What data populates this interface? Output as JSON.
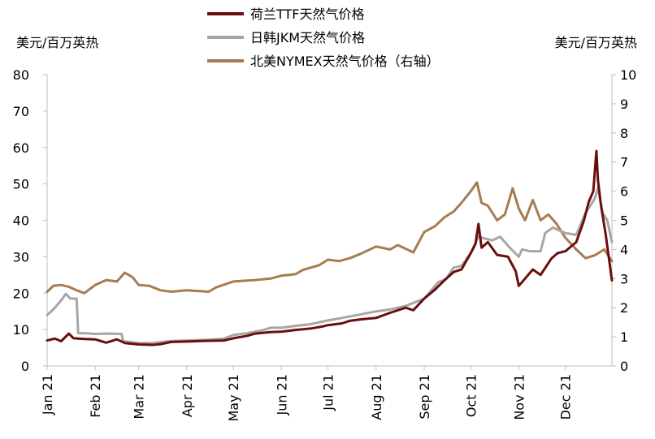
{
  "chart_data": {
    "type": "line",
    "left_unit": "美元/百万英热",
    "right_unit": "美元/百万英热",
    "ylim_left": [
      0,
      80
    ],
    "ylim_right": [
      0,
      10
    ],
    "yticks_left": [
      "0",
      "10",
      "20",
      "30",
      "40",
      "50",
      "60",
      "70",
      "80"
    ],
    "yticks_right": [
      "0",
      "1",
      "2",
      "3",
      "4",
      "5",
      "6",
      "7",
      "8",
      "9",
      "10"
    ],
    "x_start": "2021-01-01",
    "x_end": "2021-12-31",
    "x_ticks": [
      {
        "label": "Jan 21",
        "date": "2021-01-01"
      },
      {
        "label": "Feb 21",
        "date": "2021-02-01"
      },
      {
        "label": "Mar 21",
        "date": "2021-03-01"
      },
      {
        "label": "Apr 21",
        "date": "2021-04-01"
      },
      {
        "label": "May 21",
        "date": "2021-05-01"
      },
      {
        "label": "Jun 21",
        "date": "2021-06-01"
      },
      {
        "label": "Jul 21",
        "date": "2021-07-01"
      },
      {
        "label": "Aug 21",
        "date": "2021-08-01"
      },
      {
        "label": "Sep 21",
        "date": "2021-09-01"
      },
      {
        "label": "Oct 21",
        "date": "2021-10-01"
      },
      {
        "label": "Nov 21",
        "date": "2021-11-01"
      },
      {
        "label": "Dec 21",
        "date": "2021-12-01"
      }
    ],
    "grid": false,
    "legend_position": "top-center",
    "series": [
      {
        "name": "荷兰TTF天然气价格",
        "axis": "left",
        "color": "#6b0d0d",
        "points": [
          [
            "2021-01-01",
            7.0
          ],
          [
            "2021-01-06",
            7.5
          ],
          [
            "2021-01-10",
            6.8
          ],
          [
            "2021-01-15",
            8.9
          ],
          [
            "2021-01-18",
            7.6
          ],
          [
            "2021-01-25",
            7.4
          ],
          [
            "2021-02-01",
            7.3
          ],
          [
            "2021-02-08",
            6.4
          ],
          [
            "2021-02-15",
            7.3
          ],
          [
            "2021-02-20",
            6.3
          ],
          [
            "2021-03-01",
            5.9
          ],
          [
            "2021-03-10",
            5.8
          ],
          [
            "2021-03-15",
            6.0
          ],
          [
            "2021-03-22",
            6.6
          ],
          [
            "2021-04-01",
            6.7
          ],
          [
            "2021-04-15",
            6.9
          ],
          [
            "2021-04-25",
            7.0
          ],
          [
            "2021-05-01",
            7.6
          ],
          [
            "2021-05-10",
            8.3
          ],
          [
            "2021-05-15",
            8.9
          ],
          [
            "2021-05-25",
            9.3
          ],
          [
            "2021-06-01",
            9.4
          ],
          [
            "2021-06-10",
            9.9
          ],
          [
            "2021-06-20",
            10.3
          ],
          [
            "2021-06-28",
            10.9
          ],
          [
            "2021-07-01",
            11.2
          ],
          [
            "2021-07-10",
            11.7
          ],
          [
            "2021-07-15",
            12.4
          ],
          [
            "2021-07-22",
            12.8
          ],
          [
            "2021-08-01",
            13.2
          ],
          [
            "2021-08-10",
            14.6
          ],
          [
            "2021-08-20",
            16.0
          ],
          [
            "2021-08-25",
            15.3
          ],
          [
            "2021-09-01",
            18.5
          ],
          [
            "2021-09-08",
            21.0
          ],
          [
            "2021-09-14",
            23.5
          ],
          [
            "2021-09-20",
            25.8
          ],
          [
            "2021-09-25",
            26.5
          ],
          [
            "2021-10-01",
            31.0
          ],
          [
            "2021-10-04",
            33.5
          ],
          [
            "2021-10-06",
            39.0
          ],
          [
            "2021-10-08",
            32.5
          ],
          [
            "2021-10-12",
            34.0
          ],
          [
            "2021-10-18",
            30.5
          ],
          [
            "2021-10-25",
            30.0
          ],
          [
            "2021-10-30",
            26.0
          ],
          [
            "2021-11-01",
            22.0
          ],
          [
            "2021-11-05",
            24.0
          ],
          [
            "2021-11-10",
            26.5
          ],
          [
            "2021-11-15",
            25.0
          ],
          [
            "2021-11-22",
            29.5
          ],
          [
            "2021-11-26",
            31.0
          ],
          [
            "2021-12-01",
            31.5
          ],
          [
            "2021-12-08",
            34.0
          ],
          [
            "2021-12-13",
            40.0
          ],
          [
            "2021-12-16",
            45.0
          ],
          [
            "2021-12-19",
            48.0
          ],
          [
            "2021-12-21",
            59.0
          ],
          [
            "2021-12-22",
            51.0
          ],
          [
            "2021-12-24",
            44.0
          ],
          [
            "2021-12-27",
            36.0
          ],
          [
            "2021-12-31",
            23.5
          ]
        ]
      },
      {
        "name": "日韩JKM天然气价格",
        "axis": "left",
        "color": "#a6a6a6",
        "points": [
          [
            "2021-01-01",
            14.0
          ],
          [
            "2021-01-05",
            15.5
          ],
          [
            "2021-01-10",
            18.0
          ],
          [
            "2021-01-13",
            19.8
          ],
          [
            "2021-01-16",
            18.5
          ],
          [
            "2021-01-20",
            18.5
          ],
          [
            "2021-01-21",
            9.0
          ],
          [
            "2021-01-25",
            9.0
          ],
          [
            "2021-02-01",
            8.8
          ],
          [
            "2021-02-10",
            8.9
          ],
          [
            "2021-02-18",
            8.8
          ],
          [
            "2021-02-19",
            6.8
          ],
          [
            "2021-03-01",
            6.3
          ],
          [
            "2021-03-10",
            6.3
          ],
          [
            "2021-03-20",
            6.8
          ],
          [
            "2021-04-01",
            7.0
          ],
          [
            "2021-04-15",
            7.2
          ],
          [
            "2021-04-25",
            7.5
          ],
          [
            "2021-05-01",
            8.5
          ],
          [
            "2021-05-10",
            9.0
          ],
          [
            "2021-05-20",
            9.8
          ],
          [
            "2021-05-25",
            10.5
          ],
          [
            "2021-06-01",
            10.5
          ],
          [
            "2021-06-10",
            11.0
          ],
          [
            "2021-06-20",
            11.5
          ],
          [
            "2021-07-01",
            12.5
          ],
          [
            "2021-07-10",
            13.2
          ],
          [
            "2021-07-20",
            14.0
          ],
          [
            "2021-08-01",
            15.0
          ],
          [
            "2021-08-10",
            15.5
          ],
          [
            "2021-08-20",
            16.5
          ],
          [
            "2021-09-01",
            18.5
          ],
          [
            "2021-09-10",
            23.0
          ],
          [
            "2021-09-15",
            23.8
          ],
          [
            "2021-09-20",
            27.0
          ],
          [
            "2021-09-25",
            27.5
          ],
          [
            "2021-10-01",
            31.0
          ],
          [
            "2021-10-06",
            35.5
          ],
          [
            "2021-10-10",
            35.0
          ],
          [
            "2021-10-15",
            34.5
          ],
          [
            "2021-10-20",
            35.5
          ],
          [
            "2021-10-25",
            33.0
          ],
          [
            "2021-11-01",
            30.0
          ],
          [
            "2021-11-03",
            32.0
          ],
          [
            "2021-11-08",
            31.5
          ],
          [
            "2021-11-15",
            31.5
          ],
          [
            "2021-11-18",
            36.5
          ],
          [
            "2021-11-23",
            38.0
          ],
          [
            "2021-12-01",
            36.5
          ],
          [
            "2021-12-08",
            36.0
          ],
          [
            "2021-12-14",
            42.0
          ],
          [
            "2021-12-20",
            46.0
          ],
          [
            "2021-12-22",
            49.0
          ],
          [
            "2021-12-25",
            42.0
          ],
          [
            "2021-12-28",
            40.0
          ],
          [
            "2021-12-31",
            34.0
          ]
        ]
      },
      {
        "name": "北美NYMEX天然气价格（右轴）",
        "axis": "right",
        "color": "#a67c52",
        "points": [
          [
            "2021-01-01",
            2.55
          ],
          [
            "2021-01-05",
            2.75
          ],
          [
            "2021-01-10",
            2.78
          ],
          [
            "2021-01-15",
            2.72
          ],
          [
            "2021-01-20",
            2.6
          ],
          [
            "2021-01-25",
            2.5
          ],
          [
            "2021-02-01",
            2.78
          ],
          [
            "2021-02-08",
            2.95
          ],
          [
            "2021-02-15",
            2.9
          ],
          [
            "2021-02-20",
            3.2
          ],
          [
            "2021-02-25",
            3.05
          ],
          [
            "2021-03-01",
            2.78
          ],
          [
            "2021-03-08",
            2.75
          ],
          [
            "2021-03-15",
            2.6
          ],
          [
            "2021-03-22",
            2.55
          ],
          [
            "2021-04-01",
            2.6
          ],
          [
            "2021-04-15",
            2.55
          ],
          [
            "2021-04-20",
            2.7
          ],
          [
            "2021-05-01",
            2.9
          ],
          [
            "2021-05-15",
            2.95
          ],
          [
            "2021-05-25",
            3.0
          ],
          [
            "2021-06-01",
            3.1
          ],
          [
            "2021-06-10",
            3.15
          ],
          [
            "2021-06-15",
            3.3
          ],
          [
            "2021-06-25",
            3.45
          ],
          [
            "2021-07-01",
            3.65
          ],
          [
            "2021-07-08",
            3.6
          ],
          [
            "2021-07-15",
            3.7
          ],
          [
            "2021-07-22",
            3.85
          ],
          [
            "2021-08-01",
            4.1
          ],
          [
            "2021-08-10",
            4.0
          ],
          [
            "2021-08-15",
            4.15
          ],
          [
            "2021-08-25",
            3.9
          ],
          [
            "2021-09-01",
            4.6
          ],
          [
            "2021-09-08",
            4.8
          ],
          [
            "2021-09-14",
            5.1
          ],
          [
            "2021-09-20",
            5.3
          ],
          [
            "2021-09-25",
            5.6
          ],
          [
            "2021-10-01",
            6.0
          ],
          [
            "2021-10-05",
            6.3
          ],
          [
            "2021-10-08",
            5.6
          ],
          [
            "2021-10-12",
            5.5
          ],
          [
            "2021-10-18",
            5.0
          ],
          [
            "2021-10-23",
            5.2
          ],
          [
            "2021-10-28",
            6.1
          ],
          [
            "2021-11-01",
            5.4
          ],
          [
            "2021-11-05",
            5.0
          ],
          [
            "2021-11-10",
            5.7
          ],
          [
            "2021-11-15",
            5.0
          ],
          [
            "2021-11-20",
            5.2
          ],
          [
            "2021-11-25",
            4.9
          ],
          [
            "2021-12-01",
            4.4
          ],
          [
            "2021-12-08",
            4.0
          ],
          [
            "2021-12-14",
            3.7
          ],
          [
            "2021-12-20",
            3.8
          ],
          [
            "2021-12-26",
            4.0
          ],
          [
            "2021-12-31",
            3.6
          ]
        ]
      }
    ]
  }
}
